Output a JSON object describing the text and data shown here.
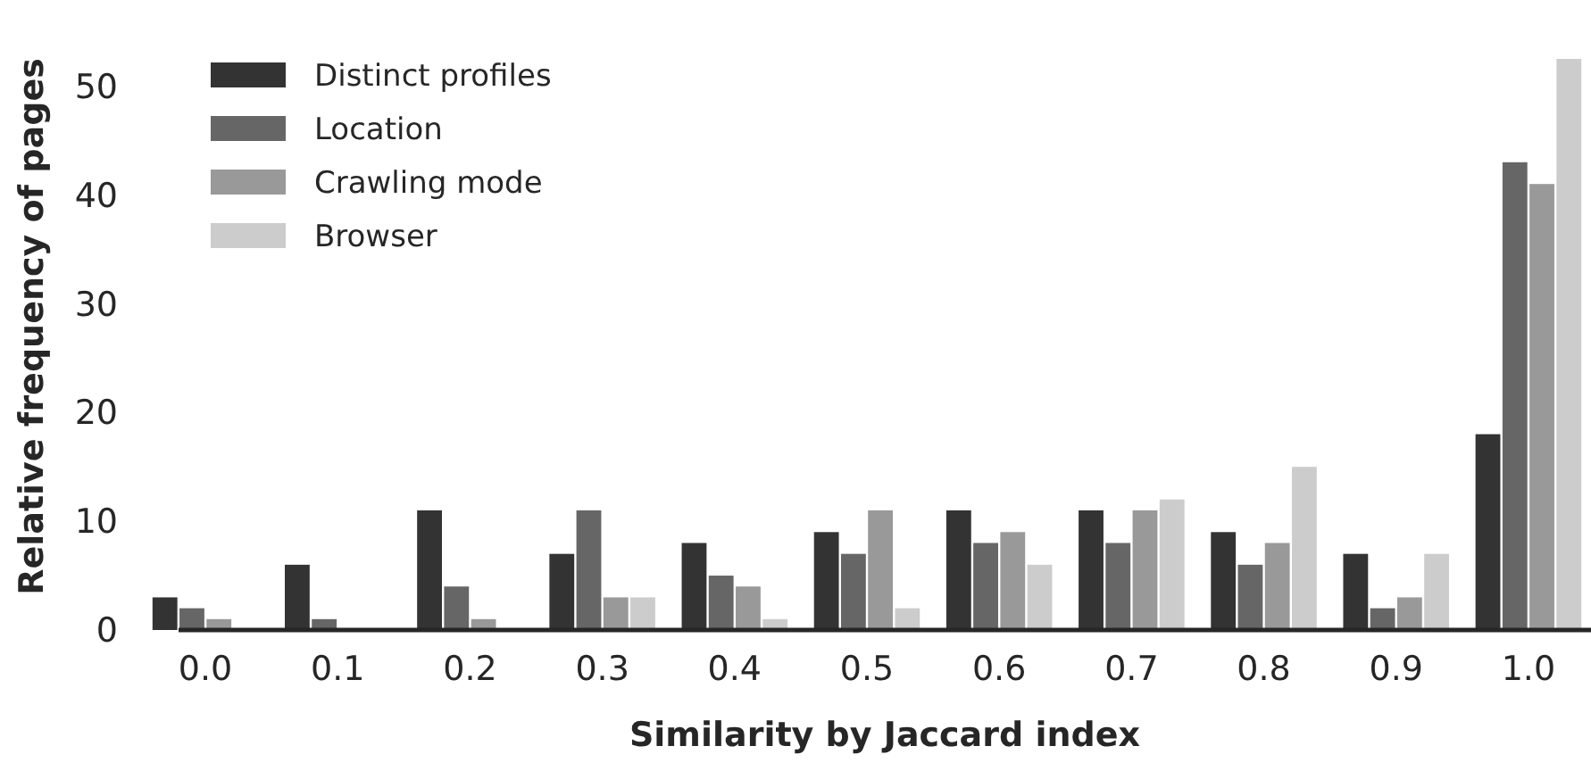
{
  "chart_data": {
    "type": "bar",
    "xlabel": "Similarity by Jaccard index",
    "ylabel": "Relative frequency of pages",
    "categories": [
      "0.0",
      "0.1",
      "0.2",
      "0.3",
      "0.4",
      "0.5",
      "0.6",
      "0.7",
      "0.8",
      "0.9",
      "1.0"
    ],
    "series": [
      {
        "name": "Distinct profiles",
        "color": "#333333",
        "values": [
          3,
          6,
          11,
          7,
          8,
          9,
          11,
          11,
          9,
          7,
          18
        ]
      },
      {
        "name": "Location",
        "color": "#666666",
        "values": [
          2,
          1,
          4,
          11,
          5,
          7,
          8,
          8,
          6,
          2,
          43
        ]
      },
      {
        "name": "Crawling mode",
        "color": "#999999",
        "values": [
          1,
          0,
          1,
          3,
          4,
          11,
          9,
          11,
          8,
          3,
          41
        ]
      },
      {
        "name": "Browser",
        "color": "#cccccc",
        "values": [
          0,
          0,
          0,
          3,
          1,
          2,
          6,
          12,
          15,
          7,
          52.5
        ]
      }
    ],
    "ylim": [
      0,
      52.5
    ],
    "yticks": [
      0,
      10,
      20,
      30,
      40,
      50
    ],
    "grid": false,
    "legend": "top left"
  }
}
